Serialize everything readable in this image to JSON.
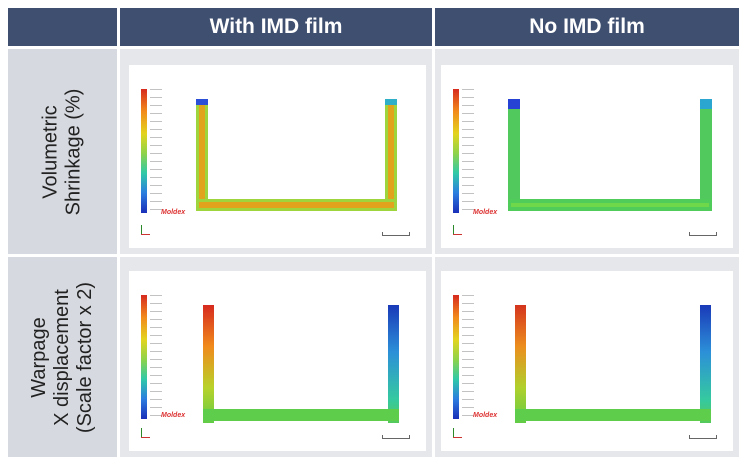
{
  "header": {
    "col1": "With IMD film",
    "col2": "No IMD film"
  },
  "rows": [
    {
      "label_lines": [
        "Volumetric",
        "Shrinkage (%)"
      ]
    },
    {
      "label_lines": [
        "Warpage",
        "X displacement",
        "(Scale factor x 2)"
      ]
    }
  ],
  "brand": "Moldex",
  "colors": {
    "header_bg": "#3f4f70",
    "row_label_bg": "#d6d9df",
    "cell_bg": "#e5e7eb"
  }
}
